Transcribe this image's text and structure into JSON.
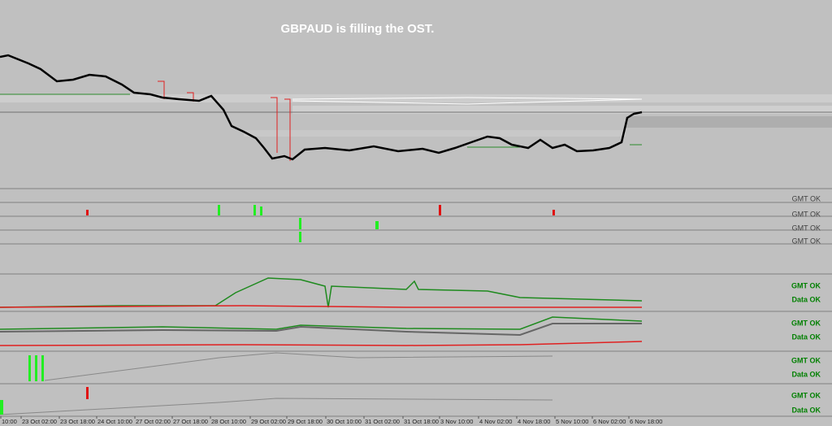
{
  "title": "GBPAUD is filling the OST.",
  "indicator_panels": [
    {
      "status": [
        "GMT OK"
      ]
    },
    {
      "status": [
        "GMT OK"
      ]
    },
    {
      "status": [
        "GMT OK"
      ]
    },
    {
      "status": [
        "GMT OK"
      ]
    },
    {
      "status": [
        "GMT OK",
        "Data OK"
      ]
    },
    {
      "status": [
        "GMT OK",
        "Data OK"
      ]
    },
    {
      "status": [
        "GMT OK",
        "Data OK"
      ]
    },
    {
      "status": [
        "GMT OK",
        "Data OK"
      ]
    }
  ],
  "time_axis": [
    "10:00",
    "23 Oct 02:00",
    "23 Oct 18:00",
    "24 Oct 10:00",
    "27 Oct 02:00",
    "27 Oct 18:00",
    "28 Oct 10:00",
    "29 Oct 02:00",
    "29 Oct 18:00",
    "30 Oct 10:00",
    "31 Oct 02:00",
    "31 Oct 18:00",
    "3 Nov 10:00",
    "4 Nov 02:00",
    "4 Nov 18:00",
    "5 Nov 10:00",
    "6 Nov 02:00",
    "6 Nov 18:00"
  ]
}
